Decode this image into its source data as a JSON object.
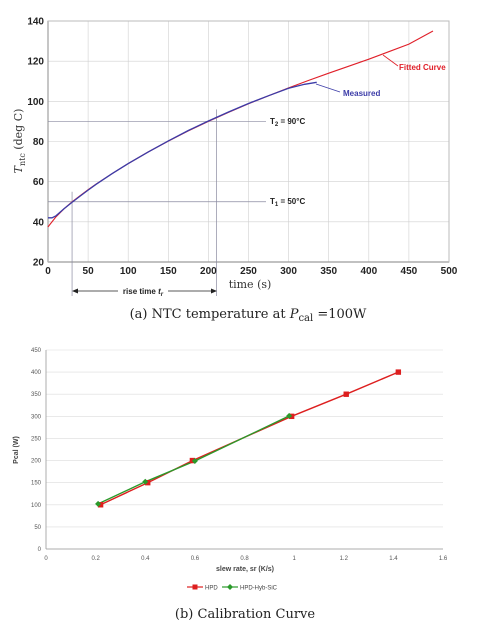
{
  "colors": {
    "fitted": "#e0202a",
    "measured": "#3c3ca8",
    "grid": "#d0d0d0",
    "guide": "#8a8aa0",
    "hpd": "#dd1f1f",
    "hybsic": "#2a9a2a",
    "axis": "#222222"
  },
  "chart_data": [
    {
      "type": "line",
      "caption": "(a)  NTC temperature at P_cal =100W",
      "caption_parts": {
        "prefix": "(a)  NTC temperature at ",
        "var": "P",
        "sub": "cal",
        "suffix": " =100W"
      },
      "xlabel": "time (s)",
      "ylabel_main": "T",
      "ylabel_sub": "ntc",
      "ylabel_unit": " (deg C)",
      "xlim": [
        0,
        500
      ],
      "ylim": [
        20,
        140
      ],
      "xticks": [
        0,
        50,
        100,
        150,
        200,
        250,
        300,
        350,
        400,
        450,
        500
      ],
      "yticks": [
        20,
        40,
        60,
        80,
        100,
        120,
        140
      ],
      "grid": true,
      "series": [
        {
          "name": "Fitted Curve",
          "x": [
            0,
            10,
            20,
            30,
            40,
            50,
            60,
            80,
            100,
            125,
            150,
            175,
            200,
            225,
            250,
            275,
            300,
            325,
            350,
            375,
            400,
            425,
            450,
            480
          ],
          "y": [
            37.5,
            42.5,
            46.5,
            50.0,
            53.0,
            56.0,
            58.8,
            64.0,
            69.0,
            74.8,
            80.2,
            85.3,
            90.0,
            94.5,
            98.8,
            102.8,
            106.7,
            110.4,
            114.0,
            117.5,
            121.0,
            124.7,
            128.5,
            135.0
          ]
        },
        {
          "name": "Measured",
          "x": [
            0,
            5,
            10,
            20,
            30,
            40,
            50,
            60,
            80,
            100,
            125,
            150,
            175,
            200,
            225,
            250,
            275,
            300,
            320,
            335
          ],
          "y": [
            42.0,
            42.0,
            43.0,
            46.5,
            49.8,
            52.8,
            55.8,
            58.7,
            64.0,
            69.0,
            74.8,
            80.3,
            85.5,
            90.2,
            94.7,
            98.9,
            102.8,
            106.5,
            108.5,
            109.5
          ]
        }
      ],
      "annotations": {
        "fitted_label": "Fitted Curve",
        "measured_label": "Measured",
        "t2_main": "T",
        "t2_sub": "2",
        "t2_rest": " = 90°C",
        "t1_main": "T",
        "t1_sub": "1",
        "t1_rest": " = 50°C",
        "t2_value": 90,
        "t1_value": 50,
        "rise_start": 30,
        "rise_end": 210,
        "rise_main": "rise time ",
        "rise_var": "t",
        "rise_sub": "r"
      }
    },
    {
      "type": "line",
      "caption": "(b)  Calibration Curve",
      "xlabel": "slew rate, sr (K/s)",
      "ylabel": "Pcal (W)",
      "xlim": [
        0,
        1.6
      ],
      "ylim": [
        0,
        450
      ],
      "xticks": [
        "0",
        "0.2",
        "0.4",
        "0.6",
        "0.8",
        "1",
        "1.2",
        "1.4",
        "1.6"
      ],
      "yticks": [
        "0",
        "50",
        "100",
        "150",
        "200",
        "250",
        "300",
        "350",
        "400",
        "450"
      ],
      "grid": true,
      "legend": "bottom",
      "series": [
        {
          "name": "HPD",
          "x": [
            0.22,
            0.41,
            0.59,
            0.99,
            1.21,
            1.42
          ],
          "y": [
            100,
            150,
            200,
            300,
            350,
            400
          ]
        },
        {
          "name": "HPD-Hyb-SiC",
          "x": [
            0.21,
            0.4,
            0.6,
            0.98
          ],
          "y": [
            102,
            152,
            199,
            301
          ]
        }
      ]
    }
  ]
}
